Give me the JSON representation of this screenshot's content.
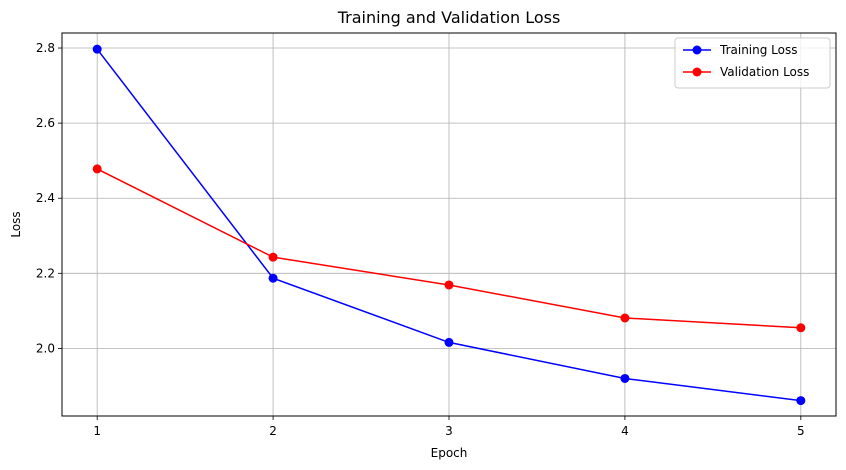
{
  "chart_data": {
    "type": "line",
    "title": "Training and Validation Loss",
    "xlabel": "Epoch",
    "ylabel": "Loss",
    "x": [
      1,
      2,
      3,
      4,
      5
    ],
    "xlim": [
      0.8,
      5.2
    ],
    "ylim": [
      1.82,
      2.84
    ],
    "xticks": [
      1,
      2,
      3,
      4,
      5
    ],
    "xtick_labels": [
      "1",
      "2",
      "3",
      "4",
      "5"
    ],
    "yticks": [
      2.0,
      2.2,
      2.4,
      2.6,
      2.8
    ],
    "ytick_labels": [
      "2.0",
      "2.2",
      "2.4",
      "2.6",
      "2.8"
    ],
    "grid": true,
    "legend_position": "top-right",
    "series": [
      {
        "name": "Training Loss",
        "color": "#0000ff",
        "marker": "circle",
        "values": [
          2.797,
          2.187,
          2.016,
          1.92,
          1.861
        ]
      },
      {
        "name": "Validation Loss",
        "color": "#ff0000",
        "marker": "circle",
        "values": [
          2.478,
          2.243,
          2.169,
          2.081,
          2.055
        ]
      }
    ]
  }
}
